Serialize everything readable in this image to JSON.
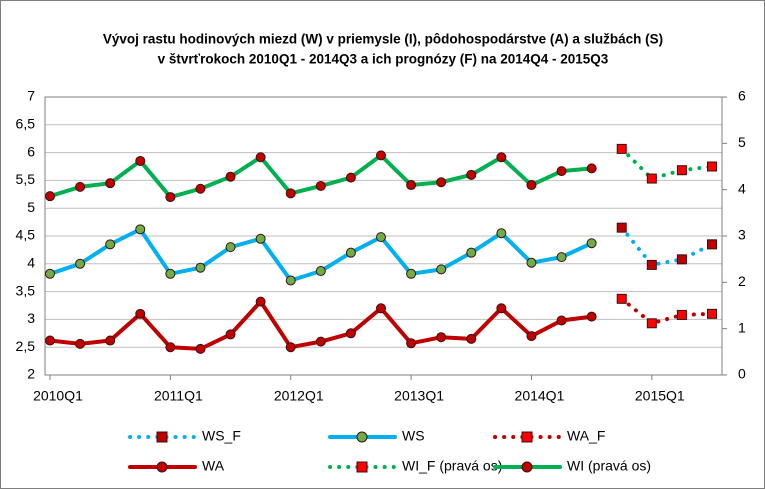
{
  "chart_data": {
    "type": "line",
    "title": [
      "Vývoj rastu hodinových miezd (W) v priemysle (I), pôdohospodárstve (A) a službách (S)",
      "v štvrťrokoch 2010Q1 - 2014Q3 a ich prognózy (F) na 2014Q4 - 2015Q3"
    ],
    "categories": [
      "2010Q1",
      null,
      null,
      null,
      "2011Q1",
      null,
      null,
      null,
      "2012Q1",
      null,
      null,
      null,
      "2013Q1",
      null,
      null,
      null,
      "2014Q1",
      null,
      null,
      null,
      "2015Q1",
      null,
      null
    ],
    "ylim": [
      2,
      7
    ],
    "yticks": [
      2,
      {
        "value": 2.5,
        "label": "2,5"
      },
      3,
      {
        "value": 3.5,
        "label": "3,5"
      },
      4,
      {
        "value": 4.5,
        "label": "4,5"
      },
      5,
      {
        "value": 5.5,
        "label": "5,5"
      },
      6,
      {
        "value": 6.5,
        "label": "6,5"
      },
      7
    ],
    "y2lim": [
      0,
      6
    ],
    "y2ticks": [
      0,
      1,
      2,
      3,
      4,
      5,
      6
    ],
    "grid": true,
    "legend": "bottom",
    "series": [
      {
        "name": "WS_F",
        "color": "#00b0f0",
        "marker": "square",
        "marker_color": "#c00000",
        "dashed": true,
        "values": [
          null,
          null,
          null,
          null,
          null,
          null,
          null,
          null,
          null,
          null,
          null,
          null,
          null,
          null,
          null,
          null,
          null,
          null,
          null,
          4.65,
          3.98,
          4.08,
          4.35
        ]
      },
      {
        "name": "WS",
        "color": "#00b0f0",
        "marker": "circle",
        "marker_color": "#70ad47",
        "dashed": false,
        "values": [
          3.82,
          4.0,
          4.35,
          4.62,
          3.82,
          3.93,
          4.3,
          4.45,
          3.7,
          3.87,
          4.2,
          4.48,
          3.82,
          3.9,
          4.2,
          4.55,
          4.02,
          4.12,
          4.37,
          null,
          null,
          null,
          null
        ]
      },
      {
        "name": "WA_F",
        "color": "#c00000",
        "marker": "square",
        "marker_color": "#ff0000",
        "dashed": true,
        "values": [
          null,
          null,
          null,
          null,
          null,
          null,
          null,
          null,
          null,
          null,
          null,
          null,
          null,
          null,
          null,
          null,
          null,
          null,
          null,
          3.37,
          2.93,
          3.08,
          3.1
        ]
      },
      {
        "name": "WA",
        "color": "#c00000",
        "marker": "circle",
        "marker_color": "#c00000",
        "dashed": false,
        "values": [
          2.62,
          2.56,
          2.62,
          3.1,
          2.5,
          2.47,
          2.73,
          3.32,
          2.5,
          2.6,
          2.75,
          3.2,
          2.57,
          2.68,
          2.65,
          3.2,
          2.7,
          2.98,
          3.05,
          null,
          null,
          null,
          null
        ]
      },
      {
        "name": "WI_F (pravá os)",
        "color": "#00b050",
        "marker": "square",
        "marker_color": "#ff0000",
        "dashed": true,
        "axis": "y2",
        "values": [
          null,
          null,
          null,
          null,
          null,
          null,
          null,
          null,
          null,
          null,
          null,
          null,
          null,
          null,
          null,
          null,
          null,
          null,
          null,
          4.88,
          4.24,
          4.42,
          4.5
        ]
      },
      {
        "name": "WI (pravá os)",
        "color": "#00b050",
        "marker": "circle",
        "marker_color": "#c00000",
        "dashed": false,
        "axis": "y2",
        "values": [
          3.86,
          4.06,
          4.14,
          4.62,
          3.84,
          4.02,
          4.28,
          4.7,
          3.92,
          4.08,
          4.26,
          4.74,
          4.1,
          4.16,
          4.32,
          4.7,
          4.1,
          4.4,
          4.46,
          null,
          null,
          null,
          null
        ]
      }
    ]
  }
}
